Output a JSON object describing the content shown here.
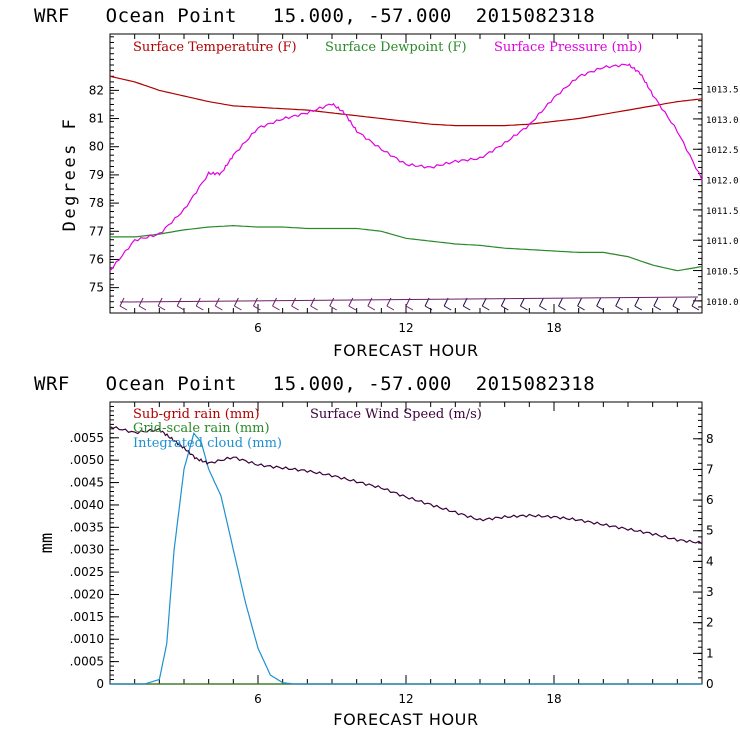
{
  "chart_data": [
    {
      "type": "line",
      "title": "WRF   Ocean Point   15.000, -57.000  2015082318",
      "xlabel": "FORECAST HOUR",
      "ylabel": "Degrees F",
      "x_ticks": [
        "6",
        "12",
        "18"
      ],
      "xlim": [
        0,
        24
      ],
      "ylim": [
        74.1,
        84.0
      ],
      "y_ticks": [
        "75",
        "76",
        "77",
        "78",
        "79",
        "80",
        "81",
        "82"
      ],
      "y2lim": [
        1009.8,
        1014.4
      ],
      "y2_ticks": [
        "1010.0",
        "1010.5",
        "1011.0",
        "1011.5",
        "1012.0",
        "1012.5",
        "1013.0",
        "1013.5"
      ],
      "series": [
        {
          "name": "Surface Temperature (F)",
          "color": "#b00000",
          "axis": "left",
          "x": [
            0,
            1,
            2,
            3,
            4,
            5,
            6,
            7,
            8,
            9,
            10,
            11,
            12,
            13,
            14,
            15,
            16,
            17,
            18,
            19,
            20,
            21,
            22,
            23,
            24
          ],
          "y": [
            82.5,
            82.3,
            82.0,
            81.8,
            81.6,
            81.45,
            81.4,
            81.35,
            81.3,
            81.2,
            81.1,
            81.0,
            80.9,
            80.8,
            80.75,
            80.75,
            80.75,
            80.8,
            80.9,
            81.0,
            81.15,
            81.3,
            81.45,
            81.6,
            81.7
          ]
        },
        {
          "name": "Surface Dewpoint (F)",
          "color": "#2a8a2a",
          "axis": "left",
          "x": [
            0,
            1,
            2,
            3,
            4,
            5,
            6,
            7,
            8,
            9,
            10,
            11,
            12,
            13,
            14,
            15,
            16,
            17,
            18,
            19,
            20,
            21,
            22,
            23,
            24
          ],
          "y": [
            76.8,
            76.8,
            76.9,
            77.05,
            77.15,
            77.2,
            77.15,
            77.15,
            77.1,
            77.1,
            77.1,
            77.0,
            76.75,
            76.65,
            76.55,
            76.5,
            76.4,
            76.35,
            76.3,
            76.25,
            76.25,
            76.1,
            75.8,
            75.6,
            75.75
          ]
        },
        {
          "name": "Surface Pressure (mb)",
          "color": "#e000e0",
          "axis": "right",
          "x": [
            0,
            1,
            2,
            3,
            4,
            4.5,
            5,
            6,
            7,
            8,
            9,
            9.5,
            10,
            11,
            12,
            13,
            14,
            15,
            16,
            17,
            18,
            19,
            20,
            21,
            21.5,
            22,
            23,
            24
          ],
          "y": [
            1010.5,
            1011.0,
            1011.1,
            1011.5,
            1012.1,
            1012.1,
            1012.4,
            1012.85,
            1013.0,
            1013.1,
            1013.25,
            1013.1,
            1012.8,
            1012.5,
            1012.25,
            1012.2,
            1012.3,
            1012.35,
            1012.6,
            1012.9,
            1013.35,
            1013.7,
            1013.85,
            1013.9,
            1013.75,
            1013.4,
            1012.8,
            1012.0
          ]
        }
      ],
      "wind_barbs": {
        "count": 31,
        "color_left": "#6a1f6a",
        "color_right": "#2a0a4a"
      }
    },
    {
      "type": "line",
      "title": "WRF   Ocean Point   15.000, -57.000  2015082318",
      "xlabel": "FORECAST HOUR",
      "ylabel": "mm",
      "x_ticks": [
        "6",
        "12",
        "18"
      ],
      "xlim": [
        0,
        24
      ],
      "ylim": [
        0,
        0.0063
      ],
      "y_ticks": [
        "0",
        ".0005",
        ".0010",
        ".0015",
        ".0020",
        ".0025",
        ".0030",
        ".0035",
        ".0040",
        ".0045",
        ".0050",
        ".0055"
      ],
      "y2lim": [
        0,
        9.2
      ],
      "y2_ticks": [
        "0",
        "1",
        "2",
        "3",
        "4",
        "5",
        "6",
        "7",
        "8"
      ],
      "series": [
        {
          "name": "Sub-grid rain (mm)",
          "color": "#b00000",
          "axis": "left",
          "x": [
            0,
            24
          ],
          "y": [
            0,
            0
          ]
        },
        {
          "name": "Grid-scale rain (mm)",
          "color": "#2a8a2a",
          "axis": "left",
          "x": [
            0,
            24
          ],
          "y": [
            0,
            0
          ]
        },
        {
          "name": "Integrated cloud (mm)",
          "color": "#1e90d0",
          "axis": "left",
          "x": [
            0,
            1.4,
            2,
            2.3,
            2.6,
            3.0,
            3.4,
            3.7,
            4.0,
            4.5,
            5.0,
            5.5,
            6.0,
            6.5,
            7.0,
            7.5,
            24
          ],
          "y": [
            0,
            0,
            0.0001,
            0.0009,
            0.003,
            0.0048,
            0.0056,
            0.0054,
            0.0048,
            0.0042,
            0.003,
            0.0018,
            0.0008,
            0.0002,
            3e-05,
            0,
            0
          ]
        },
        {
          "name": "Surface Wind Speed (m/s)",
          "color": "#3a003a",
          "axis": "right",
          "x": [
            0,
            1,
            2,
            2.5,
            3,
            3.5,
            4,
            5,
            6,
            7,
            8,
            9,
            10,
            11,
            12,
            13,
            14,
            15,
            16,
            17,
            18,
            19,
            20,
            21,
            22,
            23,
            24
          ],
          "y": [
            8.4,
            8.2,
            8.3,
            8.0,
            7.7,
            7.35,
            7.2,
            7.4,
            7.15,
            7.05,
            6.95,
            6.8,
            6.6,
            6.4,
            6.1,
            5.85,
            5.6,
            5.35,
            5.45,
            5.5,
            5.45,
            5.35,
            5.2,
            5.05,
            4.9,
            4.7,
            4.6
          ]
        }
      ]
    }
  ]
}
